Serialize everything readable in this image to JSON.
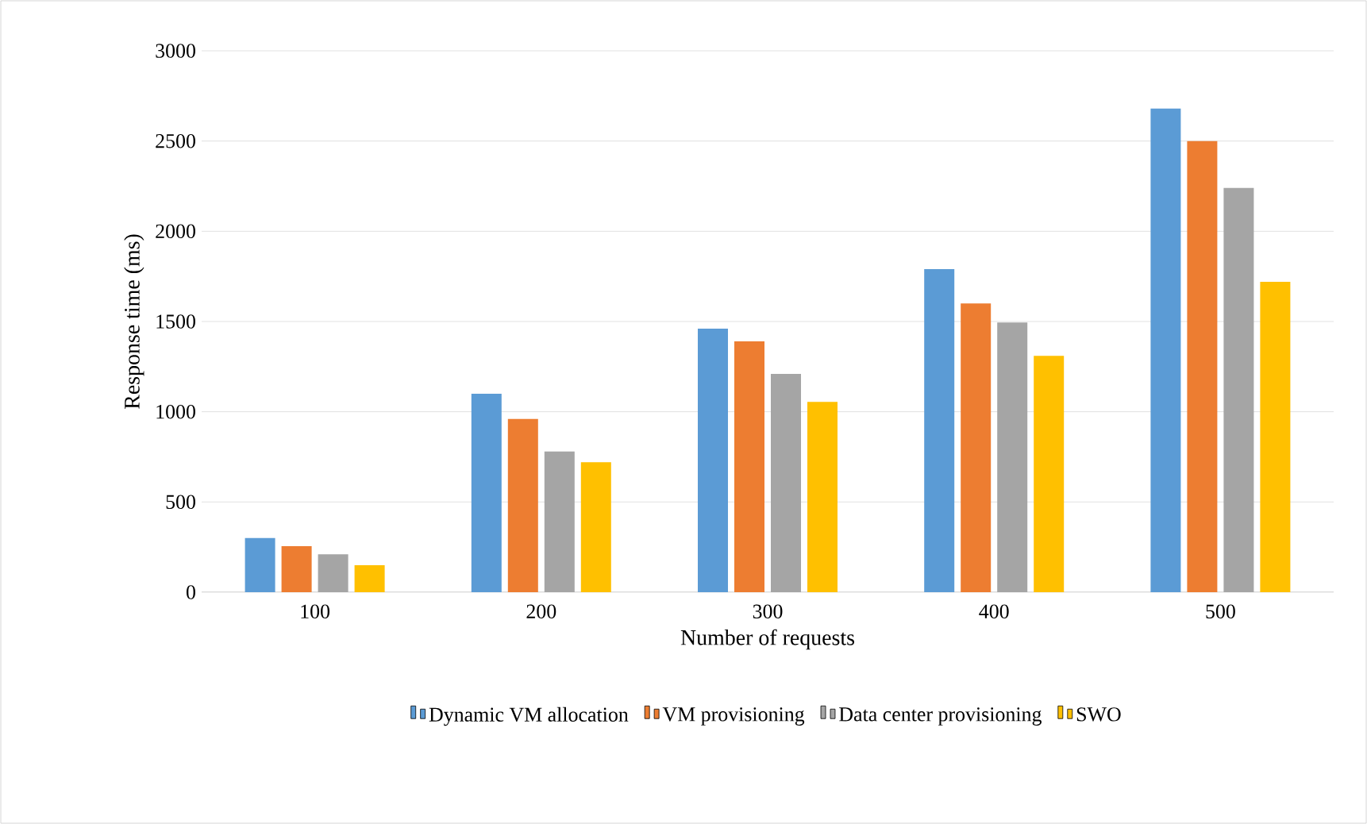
{
  "chart_data": {
    "type": "bar",
    "xlabel": "Number of requests",
    "ylabel": "Response time (ms)",
    "categories": [
      "100",
      "200",
      "300",
      "400",
      "500"
    ],
    "series": [
      {
        "name": "Dynamic VM allocation",
        "color": "#5b9bd5",
        "values": [
          300,
          1100,
          1460,
          1790,
          2680
        ]
      },
      {
        "name": "VM provisioning",
        "color": "#ed7d31",
        "values": [
          255,
          960,
          1390,
          1600,
          2500
        ]
      },
      {
        "name": "Data center provisioning",
        "color": "#a5a5a5",
        "values": [
          210,
          780,
          1210,
          1495,
          2240
        ]
      },
      {
        "name": "SWO",
        "color": "#ffc000",
        "values": [
          150,
          720,
          1055,
          1310,
          1720
        ]
      }
    ],
    "ylim": [
      0,
      3000
    ],
    "yticks": [
      0,
      500,
      1000,
      1500,
      2000,
      2500,
      3000
    ],
    "grid": "y",
    "legend": "bottom"
  }
}
